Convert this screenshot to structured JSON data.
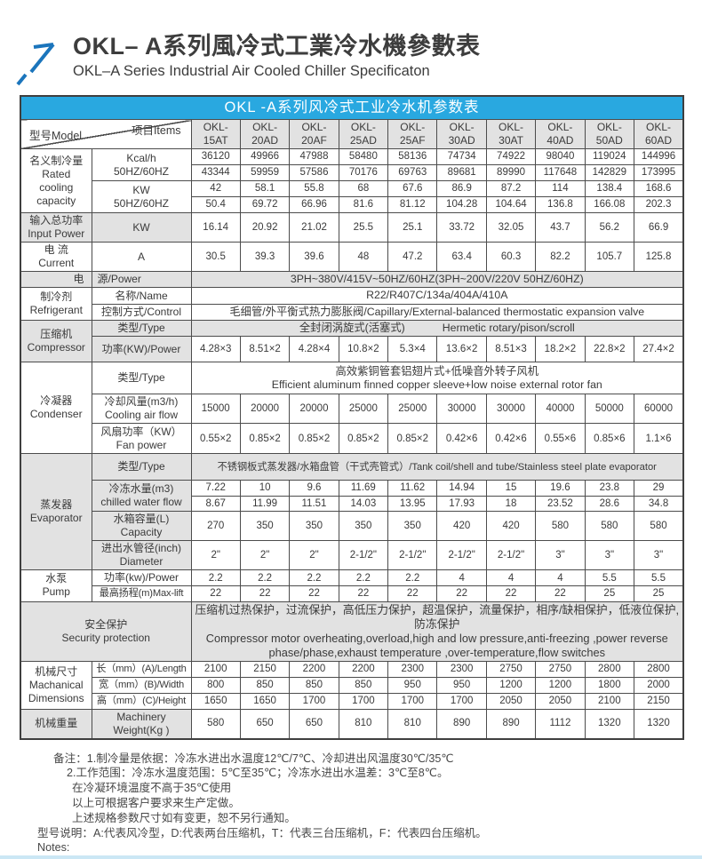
{
  "header": {
    "title_zh": "OKL– A系列風冷式工業冷水機參數表",
    "title_en": "OKL–A Series Industrial Air Cooled Chiller Specificaton"
  },
  "table": {
    "band_title": "OKL -A系列风冷式工业冷水机参数表",
    "corner": {
      "model_label": "型号Model",
      "items_label": "项目Items"
    },
    "models": [
      "OKL-\n15AT",
      "OKL-\n20AD",
      "OKL-\n20AF",
      "OKL-\n25AD",
      "OKL-\n25AF",
      "OKL-\n30AD",
      "OKL-\n30AT",
      "OKL-\n40AD",
      "OKL-\n50AD",
      "OKL-\n60AD"
    ],
    "rated_cooling": {
      "group": "名义制冷量\nRated\ncooling\ncapacity",
      "kcal_label": "Kcal/h\n50HZ/60HZ",
      "kcal_50hz": [
        "36120",
        "49966",
        "47988",
        "58480",
        "58136",
        "74734",
        "74922",
        "98040",
        "119024",
        "144996"
      ],
      "kcal_60hz": [
        "43344",
        "59959",
        "57586",
        "70176",
        "69763",
        "89681",
        "89990",
        "117648",
        "142829",
        "173995"
      ],
      "kw_label": "KW\n50HZ/60HZ",
      "kw_50hz": [
        "42",
        "58.1",
        "55.8",
        "68",
        "67.6",
        "86.9",
        "87.2",
        "114",
        "138.4",
        "168.6"
      ],
      "kw_60hz": [
        "50.4",
        "69.72",
        "66.96",
        "81.6",
        "81.12",
        "104.28",
        "104.64",
        "136.8",
        "166.08",
        "202.3"
      ]
    },
    "input_power": {
      "label": "输入总功率\nInput Power",
      "unit": "KW",
      "values": [
        "16.14",
        "20.92",
        "21.02",
        "25.5",
        "25.1",
        "33.72",
        "32.05",
        "43.7",
        "56.2",
        "66.9"
      ]
    },
    "current": {
      "label": "电 流\nCurrent",
      "unit": "A",
      "values": [
        "30.5",
        "39.3",
        "39.6",
        "48",
        "47.2",
        "63.4",
        "60.3",
        "82.2",
        "105.7",
        "125.8"
      ]
    },
    "power_supply": {
      "label_zh": "电",
      "label_item": "源/Power",
      "value": "3PH~380V/415V~50HZ/60HZ(3PH~200V/220V  50HZ/60HZ)"
    },
    "refrigerant": {
      "group": "制冷剂\nRefrigerant",
      "name_label": "名称/Name",
      "name_value": "R22/R407C/134a/404A/410A",
      "control_label": "控制方式/Control",
      "control_value": "毛细管/外平衡式热力膨胀阀/Capillary/External-balanced thermostatic expansion valve"
    },
    "compressor": {
      "group": "压缩机\nCompressor",
      "type_label": "类型/Type",
      "type_zh": "全封闭涡旋式(活塞式)",
      "type_en": "Hermetic rotary/pison/scroll",
      "power_label": "功率(KW)/Power",
      "power_values": [
        "4.28×3",
        "8.51×2",
        "4.28×4",
        "10.8×2",
        "5.3×4",
        "13.6×2",
        "8.51×3",
        "18.2×2",
        "22.8×2",
        "27.4×2"
      ]
    },
    "condenser": {
      "group": "冷凝器\nCondenser",
      "type_label": "类型/Type",
      "type_zh": "高效紫铜管套铝翅片式+低噪音外转子风机",
      "type_en": "Efficient aluminum finned copper sleeve+low noise external rotor fan",
      "airflow_label": "冷却风量(m3/h)\nCooling air flow",
      "airflow_values": [
        "15000",
        "20000",
        "20000",
        "25000",
        "25000",
        "30000",
        "30000",
        "40000",
        "50000",
        "60000"
      ],
      "fan_label": "风扇功率（KW）\nFan power",
      "fan_values": [
        "0.55×2",
        "0.85×2",
        "0.85×2",
        "0.85×2",
        "0.85×2",
        "0.42×6",
        "0.42×6",
        "0.55×6",
        "0.85×6",
        "1.1×6"
      ]
    },
    "evaporator": {
      "group": "蒸发器\nEvaporator",
      "type_label": "类型/Type",
      "type_value": "不锈钢板式蒸发器/水箱盘管（干式壳管式）/Tank coil/shell and tube/Stainless steel plate evaporator",
      "water_label": "冷冻水量(m3)\nchilled water flow",
      "water_50hz": [
        "7.22",
        "10",
        "9.6",
        "11.69",
        "11.62",
        "14.94",
        "15",
        "19.6",
        "23.8",
        "29"
      ],
      "water_60hz": [
        "8.67",
        "11.99",
        "11.51",
        "14.03",
        "13.95",
        "17.93",
        "18",
        "23.52",
        "28.6",
        "34.8"
      ],
      "capacity_label": "水箱容量(L)\nCapacity",
      "capacity_values": [
        "270",
        "350",
        "350",
        "350",
        "350",
        "420",
        "420",
        "580",
        "580",
        "580"
      ],
      "diameter_label": "进出水管径(inch)\nDiameter",
      "diameter_values": [
        "2\"",
        "2\"",
        "2\"",
        "2-1/2\"",
        "2-1/2\"",
        "2-1/2\"",
        "2-1/2\"",
        "3\"",
        "3\"",
        "3\""
      ]
    },
    "pump": {
      "group": "水泵\nPump",
      "power_label": "功率(kw)/Power",
      "power_values": [
        "2.2",
        "2.2",
        "2.2",
        "2.2",
        "2.2",
        "4",
        "4",
        "4",
        "5.5",
        "5.5"
      ],
      "lift_label": "最高扬程(m)Max-lift",
      "lift_values": [
        "22",
        "22",
        "22",
        "22",
        "22",
        "22",
        "22",
        "22",
        "25",
        "25"
      ]
    },
    "security": {
      "label": "安全保护\nSecurity protection",
      "text_zh": "压缩机过热保护，过流保护，高低压力保护，超温保护，流量保护，相序/缺相保护，低液位保护,防冻保护",
      "text_en": "Compressor motor overheating,overload,high and low pressure,anti-freezing ,power reverse phase/phase,exhaust temperature ,over-temperature,flow switches"
    },
    "dimensions": {
      "group": "机械尺寸\nMachanical\nDimensions",
      "length_label": "长（mm）(A)/Length",
      "length_values": [
        "2100",
        "2150",
        "2200",
        "2200",
        "2300",
        "2300",
        "2750",
        "2750",
        "2800",
        "2800"
      ],
      "width_label": "宽（mm）(B)/Width",
      "width_values": [
        "800",
        "850",
        "850",
        "850",
        "950",
        "950",
        "1200",
        "1200",
        "1800",
        "2000"
      ],
      "height_label": "高（mm）(C)/Height",
      "height_values": [
        "1650",
        "1650",
        "1700",
        "1700",
        "1700",
        "1700",
        "2050",
        "2050",
        "2100",
        "2150"
      ]
    },
    "weight": {
      "label_zh": "机械重量",
      "label_en": "Machinery\nWeight(Kg )",
      "values": [
        "580",
        "650",
        "650",
        "810",
        "810",
        "890",
        "890",
        "1112",
        "1320",
        "1320"
      ]
    }
  },
  "notes": {
    "line1": "备注：1.制冷量是依据：冷冻水进出水温度12℃/7℃、冷却进出风温度30℃/35℃",
    "line2": "2.工作范围：冷冻水温度范围：5℃至35℃；冷冻水进出水温差：3℃至8℃。",
    "line3": "在冷凝环境温度不高于35℃使用",
    "line4": "以上可根据客户要求来生产定做。",
    "line5": "上述规格参数尺寸如有变更，恕不另行通知。",
    "line6": "型号说明：A:代表风冷型，D:代表两台压缩机，T：代表三台压缩机，F：代表四台压缩机。",
    "line7": "Notes:"
  },
  "colors": {
    "band_blue": "#29a8e0",
    "accent_blue": "#1b75bc",
    "shade_gray": "#e2e2e2",
    "border_gray": "#4c4c4c",
    "bottom_strip": "#cbe7f5"
  }
}
